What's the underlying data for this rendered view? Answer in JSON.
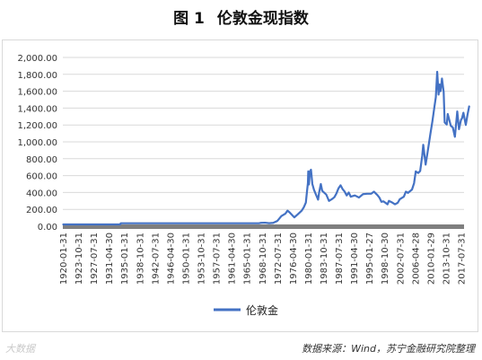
{
  "figure": {
    "title_num": "图 1",
    "title_text": "伦敦金现指数",
    "source": "数据来源：Wind，苏宁金融研究院整理",
    "watermark": "大数据"
  },
  "colors": {
    "line": "#4472c4",
    "grid": "#d9d9d9",
    "axis": "#7f7f7f",
    "text": "#333333"
  },
  "chart_data": {
    "type": "line",
    "title": "",
    "xlabel": "",
    "ylabel": "",
    "ylim": [
      0,
      2000
    ],
    "yticks": [
      "0.00",
      "200.00",
      "400.00",
      "600.00",
      "800.00",
      "1,000.00",
      "1,200.00",
      "1,400.00",
      "1,600.00",
      "1,800.00",
      "2,000.00"
    ],
    "xticks": [
      "1920-01-31",
      "1923-10-31",
      "1927-07-31",
      "1931-04-30",
      "1935-01-31",
      "1938-10-31",
      "1942-07-31",
      "1946-04-30",
      "1950-01-31",
      "1953-10-31",
      "1957-07-31",
      "1961-04-30",
      "1965-01-31",
      "1968-10-31",
      "1972-07-31",
      "1976-04-30",
      "1980-01-31",
      "1983-10-31",
      "1987-07-31",
      "1991-04-30",
      "1995-01-27",
      "1998-10-30",
      "2002-07-31",
      "2006-04-28",
      "2010-01-29",
      "2013-10-31",
      "2017-07-31"
    ],
    "legend": "bottom",
    "grid": true,
    "series": [
      {
        "name": "伦敦金",
        "points": [
          [
            "1920-01-31",
            21
          ],
          [
            "1926-01-31",
            21
          ],
          [
            "1933-12-31",
            21
          ],
          [
            "1934-02-28",
            35
          ],
          [
            "1940-01-31",
            35
          ],
          [
            "1950-01-31",
            35
          ],
          [
            "1960-01-31",
            35
          ],
          [
            "1967-12-31",
            35
          ],
          [
            "1968-06-30",
            40
          ],
          [
            "1969-06-30",
            42
          ],
          [
            "1970-06-30",
            36
          ],
          [
            "1971-06-30",
            40
          ],
          [
            "1972-06-30",
            62
          ],
          [
            "1973-06-30",
            120
          ],
          [
            "1974-06-30",
            150
          ],
          [
            "1974-12-31",
            185
          ],
          [
            "1975-06-30",
            165
          ],
          [
            "1976-08-31",
            105
          ],
          [
            "1977-06-30",
            140
          ],
          [
            "1978-06-30",
            185
          ],
          [
            "1978-12-31",
            225
          ],
          [
            "1979-06-30",
            280
          ],
          [
            "1979-09-30",
            400
          ],
          [
            "1979-12-31",
            512
          ],
          [
            "1980-01-31",
            650
          ],
          [
            "1980-03-31",
            495
          ],
          [
            "1980-06-30",
            650
          ],
          [
            "1980-09-30",
            670
          ],
          [
            "1981-01-31",
            500
          ],
          [
            "1981-06-30",
            430
          ],
          [
            "1982-06-30",
            315
          ],
          [
            "1982-09-30",
            400
          ],
          [
            "1983-02-28",
            500
          ],
          [
            "1983-06-30",
            420
          ],
          [
            "1984-06-30",
            375
          ],
          [
            "1985-02-28",
            300
          ],
          [
            "1985-12-31",
            325
          ],
          [
            "1986-06-30",
            345
          ],
          [
            "1986-12-31",
            390
          ],
          [
            "1987-06-30",
            450
          ],
          [
            "1987-12-31",
            485
          ],
          [
            "1988-06-30",
            440
          ],
          [
            "1988-12-31",
            410
          ],
          [
            "1989-06-30",
            365
          ],
          [
            "1989-12-31",
            400
          ],
          [
            "1990-06-30",
            350
          ],
          [
            "1991-06-30",
            365
          ],
          [
            "1992-06-30",
            340
          ],
          [
            "1993-06-30",
            380
          ],
          [
            "1994-06-30",
            385
          ],
          [
            "1995-06-30",
            385
          ],
          [
            "1996-02-29",
            410
          ],
          [
            "1996-12-31",
            370
          ],
          [
            "1997-06-30",
            340
          ],
          [
            "1997-12-31",
            290
          ],
          [
            "1998-06-30",
            295
          ],
          [
            "1999-06-30",
            260
          ],
          [
            "1999-10-31",
            300
          ],
          [
            "2000-06-30",
            285
          ],
          [
            "2001-04-30",
            260
          ],
          [
            "2001-12-31",
            278
          ],
          [
            "2002-06-30",
            320
          ],
          [
            "2003-06-30",
            350
          ],
          [
            "2003-12-31",
            410
          ],
          [
            "2004-06-30",
            395
          ],
          [
            "2005-06-30",
            435
          ],
          [
            "2005-12-31",
            510
          ],
          [
            "2006-05-31",
            650
          ],
          [
            "2006-12-31",
            630
          ],
          [
            "2007-06-30",
            655
          ],
          [
            "2007-12-31",
            835
          ],
          [
            "2008-03-31",
            965
          ],
          [
            "2008-10-31",
            730
          ],
          [
            "2009-06-30",
            935
          ],
          [
            "2009-12-31",
            1095
          ],
          [
            "2010-06-30",
            1245
          ],
          [
            "2010-12-31",
            1420
          ],
          [
            "2011-04-30",
            1530
          ],
          [
            "2011-08-31",
            1830
          ],
          [
            "2011-12-31",
            1560
          ],
          [
            "2012-03-31",
            1680
          ],
          [
            "2012-06-30",
            1600
          ],
          [
            "2012-10-31",
            1750
          ],
          [
            "2013-03-31",
            1590
          ],
          [
            "2013-06-30",
            1230
          ],
          [
            "2013-12-31",
            1205
          ],
          [
            "2014-03-31",
            1330
          ],
          [
            "2014-12-31",
            1190
          ],
          [
            "2015-06-30",
            1170
          ],
          [
            "2015-12-31",
            1060
          ],
          [
            "2016-07-31",
            1360
          ],
          [
            "2016-12-31",
            1150
          ],
          [
            "2017-06-30",
            1260
          ],
          [
            "2017-09-30",
            1280
          ],
          [
            "2018-01-31",
            1345
          ],
          [
            "2018-08-31",
            1200
          ],
          [
            "2019-01-31",
            1320
          ],
          [
            "2019-06-30",
            1420
          ]
        ]
      }
    ]
  }
}
